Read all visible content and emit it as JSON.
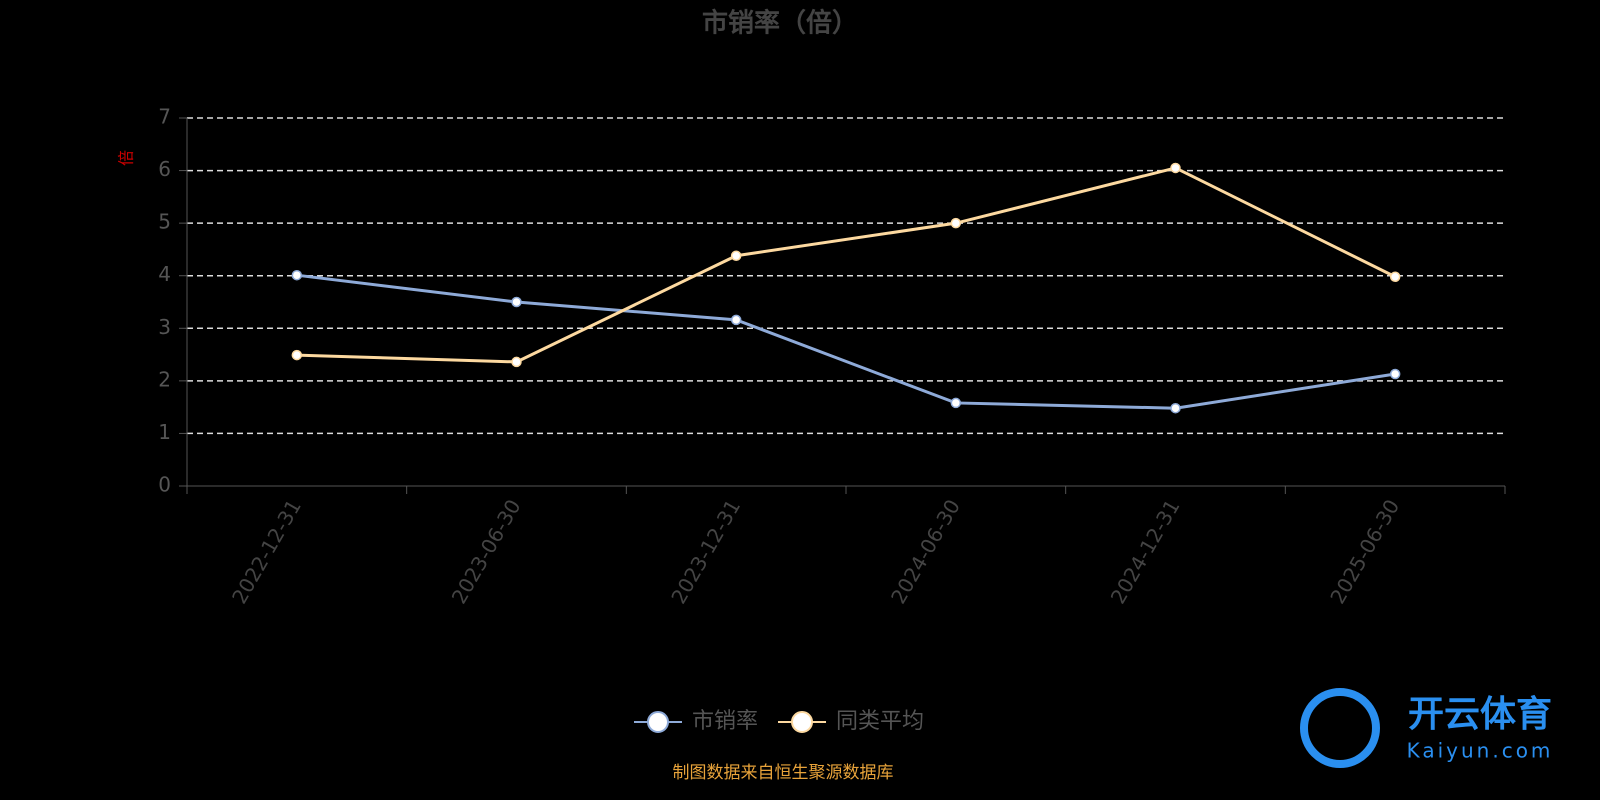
{
  "chart_data": {
    "type": "line",
    "title": "市销率（倍）",
    "y_label": "倍",
    "categories": [
      "2022-12-31",
      "2023-06-30",
      "2023-12-31",
      "2024-06-30",
      "2024-12-31",
      "2025-06-30"
    ],
    "series": [
      {
        "name": "市销率",
        "color": "#8eaad8",
        "values": [
          4.01,
          3.5,
          3.16,
          1.58,
          1.48,
          2.13
        ]
      },
      {
        "name": "同类平均",
        "color": "#fdd9a0",
        "values": [
          2.49,
          2.36,
          4.38,
          5.0,
          6.05,
          3.98
        ]
      }
    ],
    "ylim": [
      0,
      7
    ],
    "yticks": [
      0,
      1,
      2,
      3,
      4,
      5,
      6,
      7
    ],
    "grid": true,
    "legend": "bottom",
    "source": "制图数据来自恒生聚源数据库"
  },
  "watermark": {
    "name": "开云体育",
    "site": "Kaiyun.com"
  }
}
